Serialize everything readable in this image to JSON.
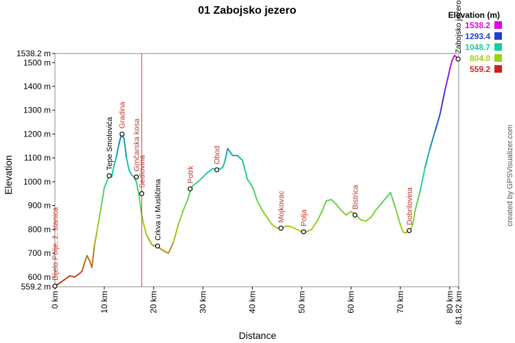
{
  "chart_data": {
    "type": "line",
    "title": "01 Zabojsko jezero",
    "xlabel": "Distance",
    "ylabel": "Elevation",
    "xlim": [
      0,
      81.82
    ],
    "ylim": [
      559.2,
      1538.2
    ],
    "x_ticks": [
      {
        "value": 0,
        "label": "0 km"
      },
      {
        "value": 10,
        "label": "10 km"
      },
      {
        "value": 20,
        "label": "20 km"
      },
      {
        "value": 30,
        "label": "30 km"
      },
      {
        "value": 40,
        "label": "40 km"
      },
      {
        "value": 50,
        "label": "50 km"
      },
      {
        "value": 60,
        "label": "60 km"
      },
      {
        "value": 70,
        "label": "70 km"
      },
      {
        "value": 80,
        "label": "80 km"
      },
      {
        "value": 81.82,
        "label": "81.82 km"
      }
    ],
    "y_ticks": [
      {
        "value": 559.2,
        "label": "559.2 m"
      },
      {
        "value": 600,
        "label": "600 m"
      },
      {
        "value": 700,
        "label": "700 m"
      },
      {
        "value": 800,
        "label": "800 m"
      },
      {
        "value": 900,
        "label": "900 m"
      },
      {
        "value": 1000,
        "label": "1000 m"
      },
      {
        "value": 1100,
        "label": "1100 m"
      },
      {
        "value": 1200,
        "label": "1200 m"
      },
      {
        "value": 1300,
        "label": "1300 m"
      },
      {
        "value": 1400,
        "label": "1400 m"
      },
      {
        "value": 1500,
        "label": "1500 m"
      },
      {
        "value": 1538.2,
        "label": "1538.2 m"
      }
    ],
    "series": [
      {
        "x": [
          0,
          1,
          2,
          3,
          4,
          5,
          5.5,
          6,
          6.5,
          7,
          7.5,
          8,
          8.5,
          9,
          9.5,
          10,
          10.5,
          11,
          11.5,
          12,
          12.5,
          13,
          13.5,
          14,
          14.5,
          15,
          15.5,
          16,
          16.5,
          17,
          17.5,
          18,
          18.5,
          19,
          19.5,
          20,
          20.5,
          21,
          22,
          23,
          24,
          25,
          26,
          27,
          27.5,
          28,
          29,
          30,
          31,
          32,
          33,
          34,
          34.5,
          35,
          36,
          37,
          38,
          38.5,
          39,
          40,
          41,
          42,
          43,
          44,
          45,
          46,
          47,
          48,
          49,
          50,
          51,
          52,
          53,
          54,
          55,
          56,
          57,
          58,
          59,
          60,
          61,
          62,
          63,
          64,
          65,
          66,
          67,
          68,
          69,
          70,
          70.5,
          71,
          71.5,
          72,
          72.5,
          73,
          74,
          75,
          76,
          77,
          78,
          79,
          80,
          80.5,
          81,
          81.82
        ],
        "y": [
          562,
          575,
          590,
          605,
          600,
          615,
          625,
          660,
          690,
          670,
          640,
          730,
          790,
          850,
          910,
          975,
          1000,
          1025,
          1020,
          1070,
          1110,
          1160,
          1200,
          1180,
          1100,
          1050,
          1030,
          1020,
          1000,
          950,
          870,
          820,
          780,
          760,
          740,
          730,
          735,
          725,
          710,
          700,
          745,
          820,
          880,
          930,
          970,
          985,
          1000,
          1020,
          1040,
          1055,
          1050,
          1060,
          1090,
          1140,
          1110,
          1110,
          1090,
          1050,
          1010,
          980,
          920,
          880,
          850,
          820,
          805,
          805,
          815,
          810,
          800,
          790,
          790,
          800,
          830,
          870,
          920,
          925,
          905,
          880,
          860,
          875,
          860,
          840,
          835,
          850,
          880,
          905,
          930,
          955,
          890,
          820,
          790,
          785,
          790,
          795,
          820,
          880,
          960,
          1060,
          1140,
          1210,
          1280,
          1380,
          1470,
          1510,
          1530,
          1515
        ]
      }
    ],
    "waypoints": [
      {
        "name": "Bijelo Polje, ž. stanica",
        "x": 0,
        "y": 562,
        "color": "#c0392b"
      },
      {
        "name": "Tepe Smolovića",
        "x": 11,
        "y": 1025,
        "color": "#000000"
      },
      {
        "name": "Gradina",
        "x": 13.6,
        "y": 1200,
        "color": "#c0392b"
      },
      {
        "name": "Grnčarska kosa",
        "x": 16.5,
        "y": 1020,
        "color": "#c0392b"
      },
      {
        "name": "Sedlovina",
        "x": 17.6,
        "y": 950,
        "color": "#c0392b"
      },
      {
        "name": "Crkva u Musličima",
        "x": 20.8,
        "y": 730,
        "color": "#000000"
      },
      {
        "name": "Potrk",
        "x": 27.4,
        "y": 970,
        "color": "#c0392b"
      },
      {
        "name": "Obod",
        "x": 32.8,
        "y": 1050,
        "color": "#c0392b"
      },
      {
        "name": "Mojkovac",
        "x": 45.8,
        "y": 805,
        "color": "#c0392b"
      },
      {
        "name": "Polja",
        "x": 50.4,
        "y": 790,
        "color": "#c0392b"
      },
      {
        "name": "Bistrica",
        "x": 60.8,
        "y": 860,
        "color": "#c0392b"
      },
      {
        "name": "Dobrilovina",
        "x": 71.8,
        "y": 795,
        "color": "#c0392b"
      },
      {
        "name": "Zabojsko jezero",
        "x": 81.7,
        "y": 1515,
        "color": "#000000"
      }
    ],
    "marker_line": {
      "x": 17.6,
      "color": "#d04040"
    },
    "legend": {
      "title": "Elevation (m)",
      "placement": "top-right",
      "entries": [
        {
          "label": "1538.2",
          "color": "#e000e0"
        },
        {
          "label": "1293.4",
          "color": "#1f3fd0"
        },
        {
          "label": "1048.7",
          "color": "#10d0a0"
        },
        {
          "label": "804.0",
          "color": "#a0d010"
        },
        {
          "label": "559.2",
          "color": "#d02020"
        }
      ]
    },
    "credit": "created by GPSVisualizer.com",
    "grid": false
  }
}
